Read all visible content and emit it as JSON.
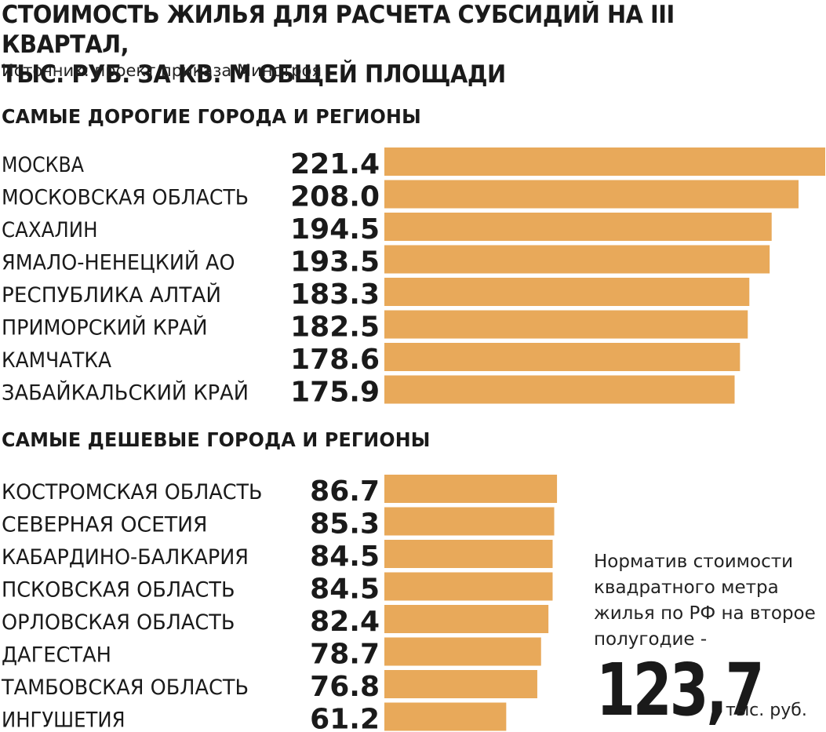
{
  "header": {
    "title_line1": "СТОИМОСТЬ ЖИЛЬЯ ДЛЯ РАСЧЕТА СУБСИДИЙ НА III КВАРТАЛ,",
    "title_line2": "ТЫС. РУБ. ЗА КВ. М ОБЩЕЙ ПЛОЩАДИ",
    "source": "Источник: проект приказа Минстроя"
  },
  "note": {
    "text": "Норматив стоимости квадратного метра жилья по РФ на второе полугодие -",
    "value": "123,7",
    "unit": "тыс. руб."
  },
  "colors": {
    "bar": "#e8a95a",
    "text": "#1a1a1a"
  },
  "chart_data": [
    {
      "type": "bar",
      "orientation": "horizontal",
      "title": "САМЫЕ ДОРОГИЕ ГОРОДА И РЕГИОНЫ",
      "categories": [
        "МОСКВА",
        "МОСКОВСКАЯ ОБЛАСТЬ",
        "САХАЛИН",
        "ЯМАЛО-НЕНЕЦКИЙ АО",
        "РЕСПУБЛИКА АЛТАЙ",
        "ПРИМОРСКИЙ КРАЙ",
        "КАМЧАТКА",
        "ЗАБАЙКАЛЬСКИЙ КРАЙ"
      ],
      "values": [
        221.4,
        208.0,
        194.5,
        193.5,
        183.3,
        182.5,
        178.6,
        175.9
      ],
      "labels": [
        "221.4",
        "208.0",
        "194.5",
        "193.5",
        "183.3",
        "182.5",
        "178.6",
        "175.9"
      ],
      "xlim": [
        0,
        221.4
      ],
      "grid": false
    },
    {
      "type": "bar",
      "orientation": "horizontal",
      "title": "САМЫЕ ДЕШЕВЫЕ ГОРОДА И РЕГИОНЫ",
      "categories": [
        "КОСТРОМСКАЯ ОБЛАСТЬ",
        "СЕВЕРНАЯ ОСЕТИЯ",
        "КАБАРДИНО-БАЛКАРИЯ",
        "ПСКОВСКАЯ ОБЛАСТЬ",
        "ОРЛОВСКАЯ ОБЛАСТЬ",
        "ДАГЕСТАН",
        "ТАМБОВСКАЯ ОБЛАСТЬ",
        "ИНГУШЕТИЯ"
      ],
      "values": [
        86.7,
        85.3,
        84.5,
        84.5,
        82.4,
        78.7,
        76.8,
        61.2
      ],
      "labels": [
        "86.7",
        "85.3",
        "84.5",
        "84.5",
        "82.4",
        "78.7",
        "76.8",
        "61.2"
      ],
      "xlim": [
        0,
        221.4
      ],
      "grid": false
    }
  ]
}
